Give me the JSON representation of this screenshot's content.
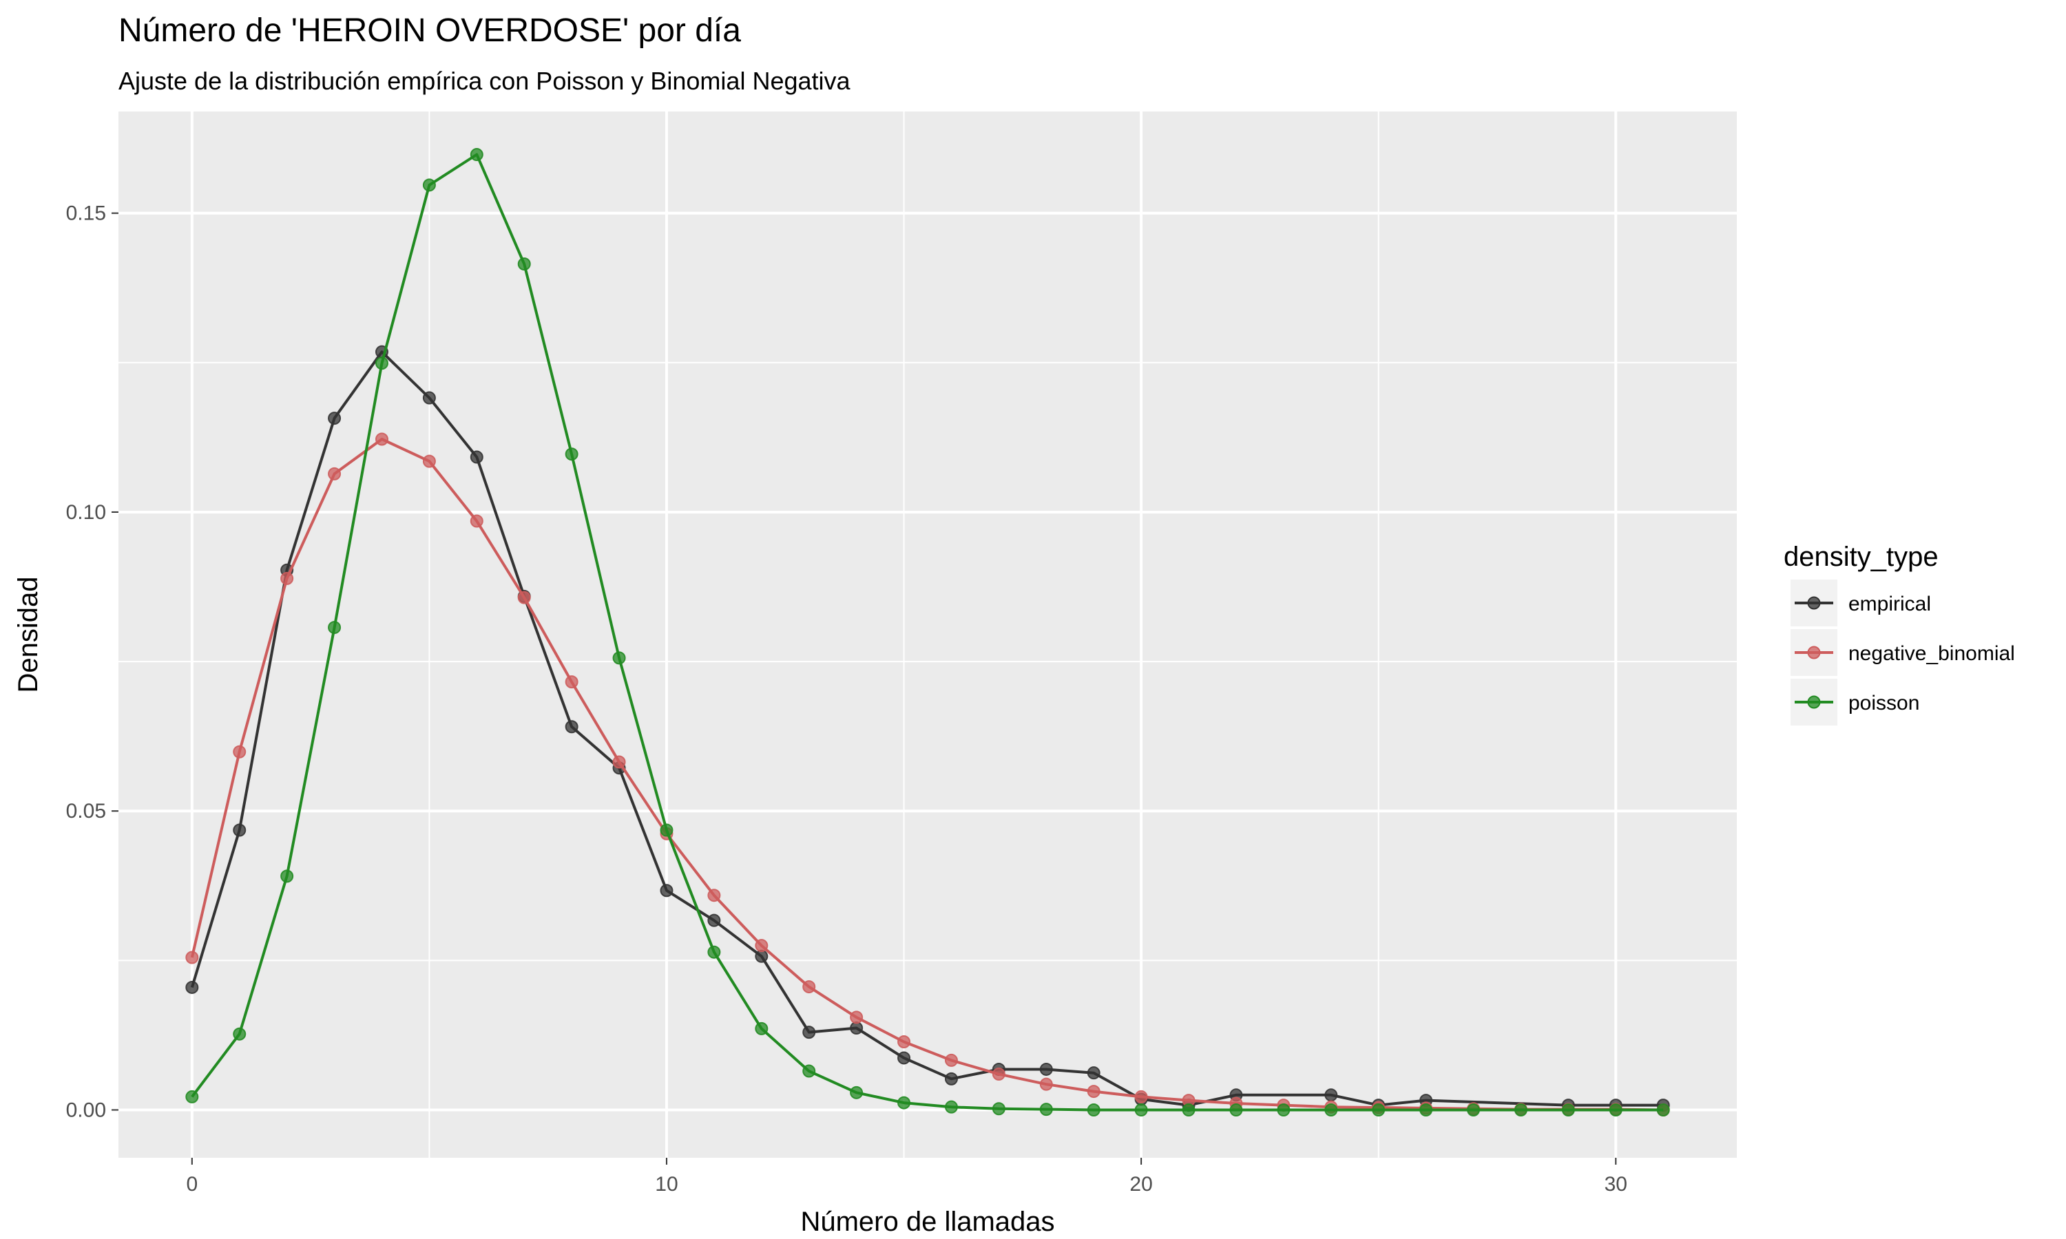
{
  "chart_data": {
    "type": "line",
    "title": "Número de 'HEROIN OVERDOSE' por día",
    "subtitle": "Ajuste de la distribución empírica con Poisson y Binomial Negativa",
    "xlabel": "Número de llamadas",
    "ylabel": "Densidad",
    "xlim": [
      -1.55,
      32.55
    ],
    "ylim": [
      -0.008,
      0.167
    ],
    "x_ticks": [
      0,
      10,
      20,
      30
    ],
    "x_tick_labels": [
      "0",
      "10",
      "20",
      "30"
    ],
    "y_ticks": [
      0.0,
      0.05,
      0.1,
      0.15
    ],
    "y_tick_labels": [
      "0.00",
      "0.05",
      "0.10",
      "0.15"
    ],
    "grid": true,
    "legend": {
      "title": "density_type",
      "position": "right"
    },
    "series": [
      {
        "name": "empirical",
        "color": "#333333",
        "points": [
          [
            0,
            0.0205
          ],
          [
            1,
            0.0468
          ],
          [
            2,
            0.0903
          ],
          [
            3,
            0.1157
          ],
          [
            4,
            0.1268
          ],
          [
            5,
            0.1191
          ],
          [
            6,
            0.1092
          ],
          [
            7,
            0.0859
          ],
          [
            8,
            0.0641
          ],
          [
            9,
            0.0572
          ],
          [
            10,
            0.0367
          ],
          [
            11,
            0.0317
          ],
          [
            12,
            0.0257
          ],
          [
            13,
            0.013
          ],
          [
            14,
            0.0137
          ],
          [
            15,
            0.0087
          ],
          [
            16,
            0.0052
          ],
          [
            17,
            0.0068
          ],
          [
            18,
            0.0068
          ],
          [
            19,
            0.0062
          ],
          [
            20,
            0.0018
          ],
          [
            21,
            0.0008
          ],
          [
            22,
            0.0025
          ],
          [
            24,
            0.0025
          ],
          [
            25,
            0.0008
          ],
          [
            26,
            0.0016
          ],
          [
            29,
            0.0008
          ],
          [
            30,
            0.0008
          ],
          [
            31,
            0.0008
          ]
        ]
      },
      {
        "name": "negative_binomial",
        "color": "#cd5c5c",
        "points": [
          [
            0,
            0.0255
          ],
          [
            1,
            0.0599
          ],
          [
            2,
            0.0889
          ],
          [
            3,
            0.1064
          ],
          [
            4,
            0.1122
          ],
          [
            5,
            0.1085
          ],
          [
            6,
            0.0985
          ],
          [
            7,
            0.0857
          ],
          [
            8,
            0.0716
          ],
          [
            9,
            0.0582
          ],
          [
            10,
            0.0462
          ],
          [
            11,
            0.0359
          ],
          [
            12,
            0.0275
          ],
          [
            13,
            0.0206
          ],
          [
            14,
            0.0155
          ],
          [
            15,
            0.0114
          ],
          [
            16,
            0.0083
          ],
          [
            17,
            0.006
          ],
          [
            18,
            0.0043
          ],
          [
            19,
            0.0031
          ],
          [
            20,
            0.0022
          ],
          [
            21,
            0.0016
          ],
          [
            22,
            0.0011
          ],
          [
            23,
            0.0008
          ],
          [
            24,
            0.0005
          ],
          [
            25,
            0.0004
          ],
          [
            26,
            0.0003
          ],
          [
            27,
            0.0002
          ],
          [
            28,
            0.0001
          ],
          [
            29,
            0.0001
          ],
          [
            30,
            0.0001
          ],
          [
            31,
            0.0
          ]
        ]
      },
      {
        "name": "poisson",
        "color": "#228b22",
        "points": [
          [
            0,
            0.0022
          ],
          [
            1,
            0.0127
          ],
          [
            2,
            0.0391
          ],
          [
            3,
            0.0807
          ],
          [
            4,
            0.1249
          ],
          [
            5,
            0.1547
          ],
          [
            6,
            0.1598
          ],
          [
            7,
            0.1415
          ],
          [
            8,
            0.1097
          ],
          [
            9,
            0.0756
          ],
          [
            10,
            0.0468
          ],
          [
            11,
            0.0264
          ],
          [
            12,
            0.0136
          ],
          [
            13,
            0.0065
          ],
          [
            14,
            0.0029
          ],
          [
            15,
            0.0012
          ],
          [
            16,
            0.0005
          ],
          [
            17,
            0.0002
          ],
          [
            18,
            0.0001
          ],
          [
            19,
            0.0
          ],
          [
            20,
            0.0
          ],
          [
            21,
            0.0
          ],
          [
            22,
            0.0
          ],
          [
            23,
            0.0
          ],
          [
            24,
            0.0
          ],
          [
            25,
            0.0
          ],
          [
            26,
            0.0
          ],
          [
            27,
            0.0
          ],
          [
            28,
            0.0
          ],
          [
            29,
            0.0
          ],
          [
            30,
            0.0
          ],
          [
            31,
            0.0
          ]
        ]
      }
    ]
  }
}
